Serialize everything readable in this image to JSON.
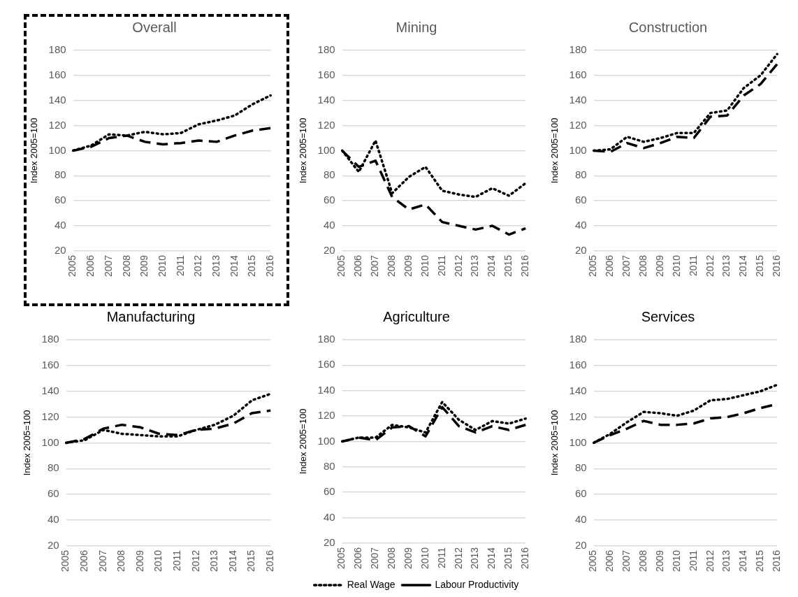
{
  "chart_data": [
    {
      "type": "line",
      "title": "Overall",
      "ylabel": "Index 2005=100",
      "categories": [
        "2005",
        "2006",
        "2007",
        "2008",
        "2009",
        "2010",
        "2011",
        "2012",
        "2013",
        "2014",
        "2015",
        "2016"
      ],
      "ylim": [
        20,
        180
      ],
      "yticks": [
        20,
        40,
        60,
        80,
        100,
        120,
        140,
        160,
        180
      ],
      "grid": "y",
      "marker": "none",
      "legend": false,
      "series": [
        {
          "color": "#000000",
          "line_style": "dotted",
          "values": [
            100,
            104,
            113,
            112,
            115,
            113,
            114,
            121,
            124,
            128,
            137,
            144
          ]
        },
        {
          "color": "#000000",
          "line_style": "dashed",
          "values": [
            100,
            103,
            110,
            112,
            107,
            105,
            106,
            108,
            107,
            112,
            116,
            118
          ]
        }
      ]
    },
    {
      "type": "line",
      "title": "Mining",
      "ylabel": "Index 2005=100",
      "categories": [
        "2005",
        "2006",
        "2007",
        "2008",
        "2009",
        "2010",
        "2011",
        "2012",
        "2013",
        "2014",
        "2015",
        "2016"
      ],
      "ylim": [
        20,
        180
      ],
      "yticks": [
        20,
        40,
        60,
        80,
        100,
        120,
        140,
        160,
        180
      ],
      "grid": "y",
      "marker": "none",
      "legend": false,
      "series": [
        {
          "color": "#000000",
          "line_style": "dotted",
          "values": [
            100,
            83,
            108,
            66,
            79,
            87,
            68,
            65,
            63,
            70,
            64,
            74
          ]
        },
        {
          "color": "#000000",
          "line_style": "dashed",
          "values": [
            100,
            87,
            92,
            63,
            53,
            57,
            43,
            40,
            37,
            40,
            33,
            38
          ]
        }
      ]
    },
    {
      "type": "line",
      "title": "Construction",
      "ylabel": "Index 2005=100",
      "categories": [
        "2005",
        "2006",
        "2007",
        "2008",
        "2009",
        "2010",
        "2011",
        "2012",
        "2013",
        "2014",
        "2015",
        "2016"
      ],
      "ylim": [
        20,
        180
      ],
      "yticks": [
        20,
        40,
        60,
        80,
        100,
        120,
        140,
        160,
        180
      ],
      "grid": "y",
      "marker": "none",
      "legend": false,
      "series": [
        {
          "color": "#000000",
          "line_style": "dotted",
          "values": [
            100,
            101,
            111,
            107,
            110,
            114,
            114,
            130,
            132,
            150,
            160,
            177
          ]
        },
        {
          "color": "#000000",
          "line_style": "dashed",
          "values": [
            100,
            99,
            106,
            102,
            106,
            111,
            110,
            127,
            128,
            144,
            153,
            169
          ]
        }
      ]
    },
    {
      "type": "line",
      "title": "Manufacturing",
      "ylabel": "Index 2005=100",
      "categories": [
        "2005",
        "2006",
        "2007",
        "2008",
        "2009",
        "2010",
        "2011",
        "2012",
        "2013",
        "2014",
        "2015",
        "2016"
      ],
      "ylim": [
        20,
        180
      ],
      "yticks": [
        20,
        40,
        60,
        80,
        100,
        120,
        140,
        160,
        180
      ],
      "grid": "y",
      "marker": "none",
      "legend": false,
      "series": [
        {
          "color": "#000000",
          "line_style": "dotted",
          "values": [
            100,
            102,
            110,
            107,
            106,
            105,
            105,
            110,
            114,
            121,
            133,
            138
          ]
        },
        {
          "color": "#000000",
          "line_style": "dashed",
          "values": [
            100,
            103,
            111,
            114,
            112,
            107,
            106,
            110,
            111,
            115,
            123,
            125
          ]
        }
      ]
    },
    {
      "type": "line",
      "title": "Agriculture",
      "ylabel": "Index 2005=100",
      "categories": [
        "2005",
        "2006",
        "2007",
        "2008",
        "2009",
        "2010",
        "2011",
        "2012",
        "2013",
        "2014",
        "2015",
        "2016"
      ],
      "ylim": [
        20,
        180
      ],
      "yticks": [
        20,
        40,
        60,
        80,
        100,
        120,
        140,
        160,
        180
      ],
      "grid": "y",
      "marker": "none",
      "legend": "bottom",
      "series": [
        {
          "name": "Real Wage",
          "color": "#000000",
          "line_style": "dotted",
          "values": [
            100,
            103,
            103,
            113,
            111,
            107,
            131,
            117,
            109,
            116,
            114,
            118
          ]
        },
        {
          "name": "Labour Productivity",
          "color": "#000000",
          "line_style": "dashed",
          "values": [
            100,
            103,
            101,
            111,
            112,
            104,
            127,
            112,
            107,
            112,
            109,
            113
          ]
        }
      ]
    },
    {
      "type": "line",
      "title": "Services",
      "ylabel": "Index 2005=100",
      "categories": [
        "2005",
        "2006",
        "2007",
        "2008",
        "2009",
        "2010",
        "2011",
        "2012",
        "2013",
        "2014",
        "2015",
        "2016"
      ],
      "ylim": [
        20,
        180
      ],
      "yticks": [
        20,
        40,
        60,
        80,
        100,
        120,
        140,
        160,
        180
      ],
      "grid": "y",
      "marker": "none",
      "legend": false,
      "series": [
        {
          "color": "#000000",
          "line_style": "dotted",
          "values": [
            100,
            107,
            116,
            124,
            123,
            121,
            125,
            133,
            134,
            137,
            140,
            145
          ]
        },
        {
          "color": "#000000",
          "line_style": "dashed",
          "values": [
            100,
            106,
            111,
            117,
            114,
            114,
            115,
            119,
            120,
            123,
            127,
            130
          ]
        }
      ]
    }
  ]
}
